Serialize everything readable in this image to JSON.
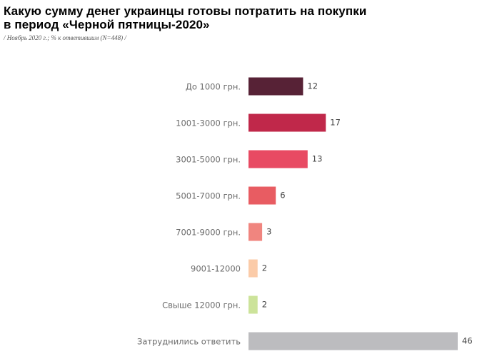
{
  "chart_data": {
    "type": "hbar",
    "title": "Какую сумму денег украинцы готовы потратить на покупки\nв период «Черной пятницы-2020»",
    "subtitle": "/ Ноябрь 2020 г.; % к ответившим (N=448) /",
    "categories": [
      "До 1000 грн.",
      "1001-3000 грн.",
      "3001-5000 грн.",
      "5001-7000 грн.",
      "7001-9000 грн.",
      "9001-12000",
      "Свыше 12000 грн.",
      "Затруднились ответить"
    ],
    "values": [
      12,
      17,
      13,
      6,
      3,
      2,
      2,
      46
    ],
    "colors": [
      "#572236",
      "#c0284a",
      "#e84a63",
      "#e85c62",
      "#f0857f",
      "#fbcba8",
      "#cce39a",
      "#bcbcbf"
    ]
  }
}
